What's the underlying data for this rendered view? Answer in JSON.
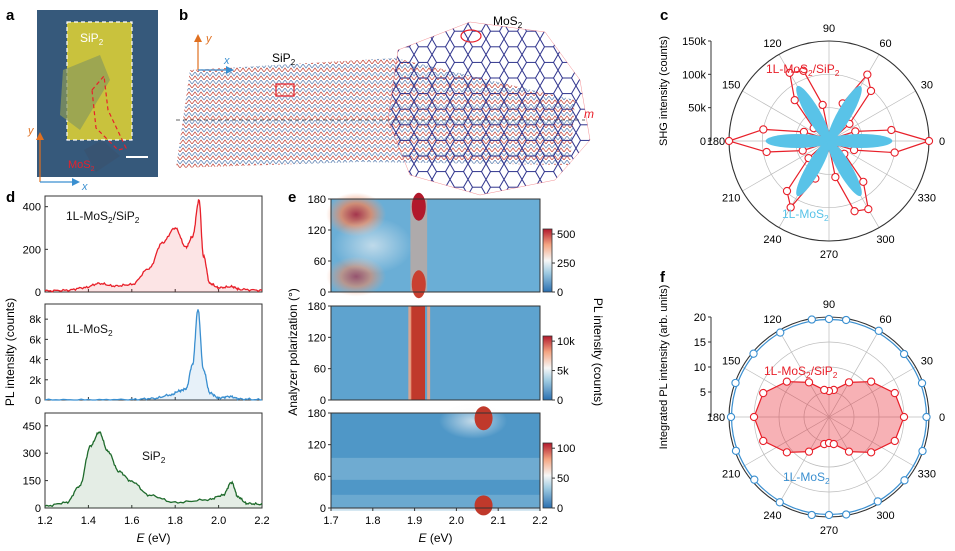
{
  "panel_labels": {
    "a": "a",
    "b": "b",
    "c": "c",
    "d": "d",
    "e": "e",
    "f": "f"
  },
  "panel_a": {
    "sip2_label": "SiP",
    "sip2_sub": "2",
    "mos2_label": "MoS",
    "mos2_sub": "2",
    "axis_x": "x",
    "axis_y": "y"
  },
  "panel_b": {
    "sip2_label": "SiP",
    "sip2_sub": "2",
    "mos2_label": "MoS",
    "mos2_sub": "2",
    "axis_x": "x",
    "axis_y": "y",
    "mirror_label": "m"
  },
  "colors": {
    "red": "#e8202a",
    "blue": "#3a8fd0",
    "green": "#1f6b2c",
    "heat_blue": "#3d8dbd",
    "heat_red": "#c0392b",
    "lightblue": "#59c3e8"
  },
  "chart_data": [
    {
      "id": "c",
      "type": "polar-scatter",
      "ylabel": "SHG intensity (counts)",
      "radial_ticks": [
        "0",
        "50k",
        "100k",
        "150k"
      ],
      "radial_values": [
        0,
        50000,
        100000,
        150000
      ],
      "angle_ticks": [
        "0",
        "30",
        "60",
        "90",
        "120",
        "150",
        "180",
        "210",
        "240",
        "270",
        "300",
        "330"
      ],
      "series": [
        {
          "name": "1L-MoS2/SiP2",
          "name_main": "1L-MoS",
          "name_sub": "2",
          "name_rest": "/SiP",
          "name_sub2": "2",
          "color": "#e8202a",
          "angles_deg": [
            0,
            10,
            20,
            30,
            40,
            50,
            60,
            70,
            80,
            90,
            100,
            110,
            120,
            130,
            140,
            150,
            160,
            170,
            180,
            190,
            200,
            210,
            220,
            230,
            240,
            250,
            260,
            270,
            280,
            290,
            300,
            310,
            320,
            330,
            340,
            350
          ],
          "r": [
            150000,
            95000,
            42000,
            8000,
            40000,
            98000,
            115000,
            60000,
            10000,
            8000,
            55000,
            112000,
            118000,
            80000,
            30000,
            10000,
            40000,
            100000,
            150000,
            95000,
            42000,
            8000,
            40000,
            98000,
            115000,
            60000,
            10000,
            8000,
            55000,
            112000,
            118000,
            80000,
            30000,
            10000,
            40000,
            100000
          ]
        },
        {
          "name": "1L-MoS2",
          "name_main": "1L-MoS",
          "name_sub": "2",
          "color": "#59c3e8",
          "angles_deg": [
            0,
            60,
            120,
            180,
            240,
            300
          ],
          "r": [
            95000,
            95000,
            95000,
            95000,
            95000,
            95000
          ]
        }
      ]
    },
    {
      "id": "d",
      "type": "line",
      "xlabel": "E (eV)",
      "ylabel": "PL intensity (counts)",
      "xlim": [
        1.2,
        2.2
      ],
      "x_ticks": [
        "1.2",
        "1.4",
        "1.6",
        "1.8",
        "2.0",
        "2.2"
      ],
      "subplots": [
        {
          "name": "1L-MoS2/SiP2",
          "name_main": "1L-MoS",
          "name_sub": "2",
          "name_rest": "/SiP",
          "name_sub2": "2",
          "color": "#e8202a",
          "ylim": [
            0,
            450
          ],
          "y_ticks": [
            "0",
            "200",
            "400"
          ],
          "x": [
            1.2,
            1.3,
            1.38,
            1.45,
            1.52,
            1.6,
            1.68,
            1.74,
            1.8,
            1.85,
            1.88,
            1.91,
            1.93,
            1.96,
            2.0,
            2.06,
            2.1,
            2.2
          ],
          "y": [
            5,
            8,
            20,
            40,
            28,
            35,
            110,
            230,
            300,
            210,
            260,
            430,
            170,
            40,
            20,
            25,
            12,
            8
          ]
        },
        {
          "name": "1L-MoS2",
          "name_main": "1L-MoS",
          "name_sub": "2",
          "color": "#3a8fd0",
          "ylim": [
            0,
            9500
          ],
          "y_ticks": [
            "0",
            "2k",
            "4k",
            "6k",
            "8k"
          ],
          "y_tick_values": [
            0,
            2000,
            4000,
            6000,
            8000
          ],
          "x": [
            1.2,
            1.4,
            1.6,
            1.7,
            1.78,
            1.82,
            1.85,
            1.88,
            1.905,
            1.93,
            1.96,
            2.0,
            2.05,
            2.1,
            2.2
          ],
          "y": [
            0,
            0,
            40,
            150,
            500,
            900,
            1100,
            3500,
            8950,
            3000,
            700,
            200,
            350,
            100,
            20
          ]
        },
        {
          "name": "SiP2",
          "name_main": "SiP",
          "name_sub": "2",
          "color": "#1f6b2c",
          "ylim": [
            0,
            520
          ],
          "y_ticks": [
            "0",
            "150",
            "300",
            "450"
          ],
          "y_tick_values": [
            0,
            150,
            300,
            450
          ],
          "x": [
            1.2,
            1.3,
            1.36,
            1.41,
            1.45,
            1.49,
            1.54,
            1.6,
            1.68,
            1.8,
            1.95,
            2.02,
            2.06,
            2.09,
            2.13,
            2.2
          ],
          "y": [
            10,
            30,
            120,
            340,
            415,
            310,
            200,
            145,
            70,
            30,
            45,
            70,
            140,
            60,
            25,
            20
          ]
        }
      ]
    },
    {
      "id": "e",
      "type": "heatmap",
      "xlabel": "E (eV)",
      "ylabel": "Analyzer polarization (°)",
      "colorbar_label": "PL intensity (counts)",
      "xlim": [
        1.7,
        2.2
      ],
      "ylim": [
        0,
        180
      ],
      "x_ticks": [
        "1.7",
        "1.8",
        "1.9",
        "2.0",
        "2.1",
        "2.2"
      ],
      "y_ticks": [
        "0",
        "60",
        "120",
        "180"
      ],
      "maps": [
        {
          "colorbar_ticks": [
            "0",
            "250",
            "500"
          ],
          "max": 550
        },
        {
          "colorbar_ticks": [
            "0",
            "5k",
            "10k"
          ],
          "max": 12000
        },
        {
          "colorbar_ticks": [
            "0",
            "50",
            "100"
          ],
          "max": 120
        }
      ]
    },
    {
      "id": "f",
      "type": "polar-scatter",
      "ylabel": "Integrated PL intensity (arb. units)",
      "radial_ticks": [
        "5",
        "10",
        "15",
        "20"
      ],
      "radial_values": [
        5,
        10,
        15,
        20
      ],
      "angle_ticks": [
        "0",
        "30",
        "60",
        "90",
        "120",
        "150",
        "180",
        "210",
        "240",
        "270",
        "300",
        "330"
      ],
      "series": [
        {
          "name": "1L-MoS2/SiP2",
          "name_main": "1L-MoS",
          "name_sub": "2",
          "name_rest": "/SiP",
          "name_sub2": "2",
          "color": "#e8202a",
          "angles_deg": [
            0,
            20,
            40,
            60,
            80,
            90,
            100,
            120,
            140,
            160,
            180,
            200,
            220,
            240,
            260,
            270,
            280,
            300,
            320,
            340
          ],
          "r": [
            15,
            14,
            11,
            8,
            5.5,
            5.2,
            5.5,
            8,
            11,
            14,
            15,
            14,
            11,
            8,
            5.5,
            5.2,
            5.5,
            8,
            11,
            14
          ]
        },
        {
          "name": "1L-MoS2",
          "name_main": "1L-MoS",
          "name_sub": "2",
          "color": "#3a8fd0",
          "angles_deg": [
            0,
            20,
            40,
            60,
            80,
            90,
            100,
            120,
            140,
            160,
            180,
            200,
            220,
            240,
            260,
            270,
            280,
            300,
            320,
            340
          ],
          "r": [
            19.5,
            19.8,
            19.6,
            19.9,
            19.7,
            19.6,
            19.8,
            19.5,
            19.7,
            19.9,
            19.6,
            19.8,
            19.5,
            19.7,
            19.9,
            19.6,
            19.8,
            19.5,
            19.7,
            19.9
          ]
        }
      ]
    }
  ]
}
